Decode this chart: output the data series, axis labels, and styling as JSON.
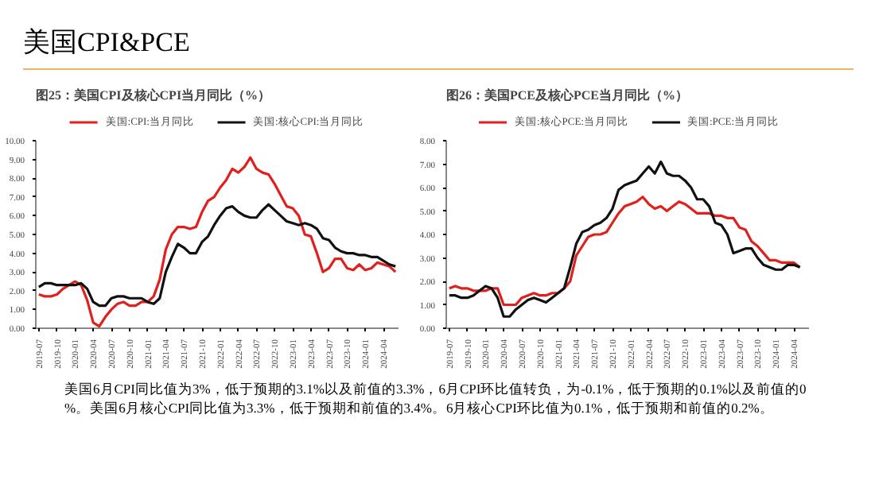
{
  "chart_data": [
    {
      "type": "other",
      "title": "美国CPI&PCE",
      "annotations": [
        "美国6月CPI同比值为3%，低于预期的3.1%以及前值的3.3%，6月CPI环比值转负，为-0.1%，低于预期的0.1%以及前值的0%。美国6月核心CPI同比值为3.3%，低于预期和前值的3.4%。6月核心CPI环比值为0.1%，低于预期和前值的0.2%。"
      ]
    },
    {
      "type": "line",
      "title": "图25：美国CPI及核心CPI当月同比（%）",
      "legend": "top",
      "grid": false,
      "x": [
        "2019-07",
        "2019-08",
        "2019-09",
        "2019-10",
        "2019-11",
        "2019-12",
        "2020-01",
        "2020-02",
        "2020-03",
        "2020-04",
        "2020-05",
        "2020-06",
        "2020-07",
        "2020-08",
        "2020-09",
        "2020-10",
        "2020-11",
        "2020-12",
        "2021-01",
        "2021-02",
        "2021-03",
        "2021-04",
        "2021-05",
        "2021-06",
        "2021-07",
        "2021-08",
        "2021-09",
        "2021-10",
        "2021-11",
        "2021-12",
        "2022-01",
        "2022-02",
        "2022-03",
        "2022-04",
        "2022-05",
        "2022-06",
        "2022-07",
        "2022-08",
        "2022-09",
        "2022-10",
        "2022-11",
        "2022-12",
        "2023-01",
        "2023-02",
        "2023-03",
        "2023-04",
        "2023-05",
        "2023-06",
        "2023-07",
        "2023-08",
        "2023-09",
        "2023-10",
        "2023-11",
        "2023-12",
        "2024-01",
        "2024-02",
        "2024-03",
        "2024-04",
        "2024-05",
        "2024-06"
      ],
      "series": [
        {
          "name": "美国:CPI:当月同比",
          "color": "#e0201c",
          "values": [
            1.8,
            1.7,
            1.7,
            1.8,
            2.1,
            2.3,
            2.5,
            2.3,
            1.5,
            0.3,
            0.1,
            0.6,
            1.0,
            1.3,
            1.4,
            1.2,
            1.2,
            1.4,
            1.4,
            1.7,
            2.6,
            4.2,
            5.0,
            5.4,
            5.4,
            5.3,
            5.4,
            6.2,
            6.8,
            7.0,
            7.5,
            7.9,
            8.5,
            8.3,
            8.6,
            9.1,
            8.5,
            8.3,
            8.2,
            7.7,
            7.1,
            6.5,
            6.4,
            6.0,
            5.0,
            4.9,
            4.0,
            3.0,
            3.2,
            3.7,
            3.7,
            3.2,
            3.1,
            3.4,
            3.1,
            3.2,
            3.5,
            3.4,
            3.3,
            3.0
          ]
        },
        {
          "name": "美国:核心CPI:当月同比",
          "color": "#111111",
          "values": [
            2.2,
            2.4,
            2.4,
            2.3,
            2.3,
            2.3,
            2.3,
            2.4,
            2.1,
            1.4,
            1.2,
            1.2,
            1.6,
            1.7,
            1.7,
            1.6,
            1.6,
            1.6,
            1.4,
            1.3,
            1.6,
            3.0,
            3.8,
            4.5,
            4.3,
            4.0,
            4.0,
            4.6,
            4.9,
            5.5,
            6.0,
            6.4,
            6.5,
            6.2,
            6.0,
            5.9,
            5.9,
            6.3,
            6.6,
            6.3,
            6.0,
            5.7,
            5.6,
            5.5,
            5.6,
            5.5,
            5.3,
            4.8,
            4.7,
            4.3,
            4.1,
            4.0,
            4.0,
            3.9,
            3.9,
            3.8,
            3.8,
            3.6,
            3.4,
            3.3
          ]
        }
      ],
      "xlim": [
        "2019-07",
        "2024-06"
      ],
      "xticks": [
        "2019-07",
        "2019-10",
        "2020-01",
        "2020-04",
        "2020-07",
        "2020-10",
        "2021-01",
        "2021-04",
        "2021-07",
        "2021-10",
        "2022-01",
        "2022-04",
        "2022-07",
        "2022-10",
        "2023-01",
        "2023-04",
        "2023-07",
        "2023-10",
        "2024-01",
        "2024-04"
      ],
      "ylim": [
        0,
        10
      ],
      "yticks": [
        {
          "value": 0,
          "label": "0.00"
        },
        {
          "value": 1,
          "label": "1.00"
        },
        {
          "value": 2,
          "label": "2.00"
        },
        {
          "value": 3,
          "label": "3.00"
        },
        {
          "value": 4,
          "label": "4.00"
        },
        {
          "value": 5,
          "label": "5.00"
        },
        {
          "value": 6,
          "label": "6.00"
        },
        {
          "value": 7,
          "label": "7.00"
        },
        {
          "value": 8,
          "label": "8.00"
        },
        {
          "value": 9,
          "label": "9.00"
        },
        {
          "value": 10,
          "label": "10.00"
        }
      ]
    },
    {
      "type": "line",
      "title": "图26：美国PCE及核心PCE当月同比（%）",
      "legend": "top",
      "grid": false,
      "x": [
        "2019-07",
        "2019-08",
        "2019-09",
        "2019-10",
        "2019-11",
        "2019-12",
        "2020-01",
        "2020-02",
        "2020-03",
        "2020-04",
        "2020-05",
        "2020-06",
        "2020-07",
        "2020-08",
        "2020-09",
        "2020-10",
        "2020-11",
        "2020-12",
        "2021-01",
        "2021-02",
        "2021-03",
        "2021-04",
        "2021-05",
        "2021-06",
        "2021-07",
        "2021-08",
        "2021-09",
        "2021-10",
        "2021-11",
        "2021-12",
        "2022-01",
        "2022-02",
        "2022-03",
        "2022-04",
        "2022-05",
        "2022-06",
        "2022-07",
        "2022-08",
        "2022-09",
        "2022-10",
        "2022-11",
        "2022-12",
        "2023-01",
        "2023-02",
        "2023-03",
        "2023-04",
        "2023-05",
        "2023-06",
        "2023-07",
        "2023-08",
        "2023-09",
        "2023-10",
        "2023-11",
        "2023-12",
        "2024-01",
        "2024-02",
        "2024-03",
        "2024-04",
        "2024-05"
      ],
      "series": [
        {
          "name": "美国:核心PCE:当月同比",
          "color": "#e0201c",
          "values": [
            1.7,
            1.8,
            1.7,
            1.7,
            1.6,
            1.6,
            1.6,
            1.7,
            1.7,
            1.0,
            1.0,
            1.0,
            1.3,
            1.4,
            1.5,
            1.4,
            1.4,
            1.5,
            1.5,
            1.7,
            2.0,
            3.1,
            3.5,
            3.9,
            4.0,
            4.0,
            4.1,
            4.5,
            4.9,
            5.2,
            5.3,
            5.4,
            5.6,
            5.3,
            5.1,
            5.2,
            5.0,
            5.2,
            5.4,
            5.3,
            5.1,
            4.9,
            4.9,
            4.9,
            4.8,
            4.8,
            4.7,
            4.7,
            4.3,
            4.2,
            3.7,
            3.5,
            3.2,
            2.9,
            2.9,
            2.8,
            2.8,
            2.8,
            2.6
          ]
        },
        {
          "name": "美国:PCE:当月同比",
          "color": "#111111",
          "values": [
            1.4,
            1.4,
            1.3,
            1.3,
            1.4,
            1.6,
            1.8,
            1.7,
            1.3,
            0.5,
            0.5,
            0.8,
            1.0,
            1.2,
            1.3,
            1.2,
            1.1,
            1.3,
            1.5,
            1.7,
            2.6,
            3.6,
            4.1,
            4.2,
            4.4,
            4.5,
            4.7,
            5.1,
            5.9,
            6.1,
            6.2,
            6.3,
            6.6,
            6.9,
            6.6,
            7.1,
            6.6,
            6.5,
            6.5,
            6.3,
            6.0,
            5.5,
            5.5,
            5.2,
            4.5,
            4.4,
            4.0,
            3.2,
            3.3,
            3.4,
            3.4,
            3.0,
            2.7,
            2.6,
            2.5,
            2.5,
            2.7,
            2.7,
            2.6
          ]
        }
      ],
      "xlim": [
        "2019-07",
        "2024-06"
      ],
      "xticks": [
        "2019-07",
        "2019-10",
        "2020-01",
        "2020-04",
        "2020-07",
        "2020-10",
        "2021-01",
        "2021-04",
        "2021-07",
        "2021-10",
        "2022-01",
        "2022-04",
        "2022-07",
        "2022-10",
        "2023-01",
        "2023-04",
        "2023-07",
        "2023-10",
        "2024-01",
        "2024-04"
      ],
      "ylim": [
        0,
        8
      ],
      "yticks": [
        {
          "value": 0,
          "label": "0.00"
        },
        {
          "value": 1,
          "label": "1.00"
        },
        {
          "value": 2,
          "label": "2.00"
        },
        {
          "value": 3,
          "label": "3.00"
        },
        {
          "value": 4,
          "label": "4.00"
        },
        {
          "value": 5,
          "label": "5.00"
        },
        {
          "value": 6,
          "label": "6.00"
        },
        {
          "value": 7,
          "label": "7.00"
        },
        {
          "value": 8,
          "label": "8.00"
        }
      ]
    }
  ]
}
